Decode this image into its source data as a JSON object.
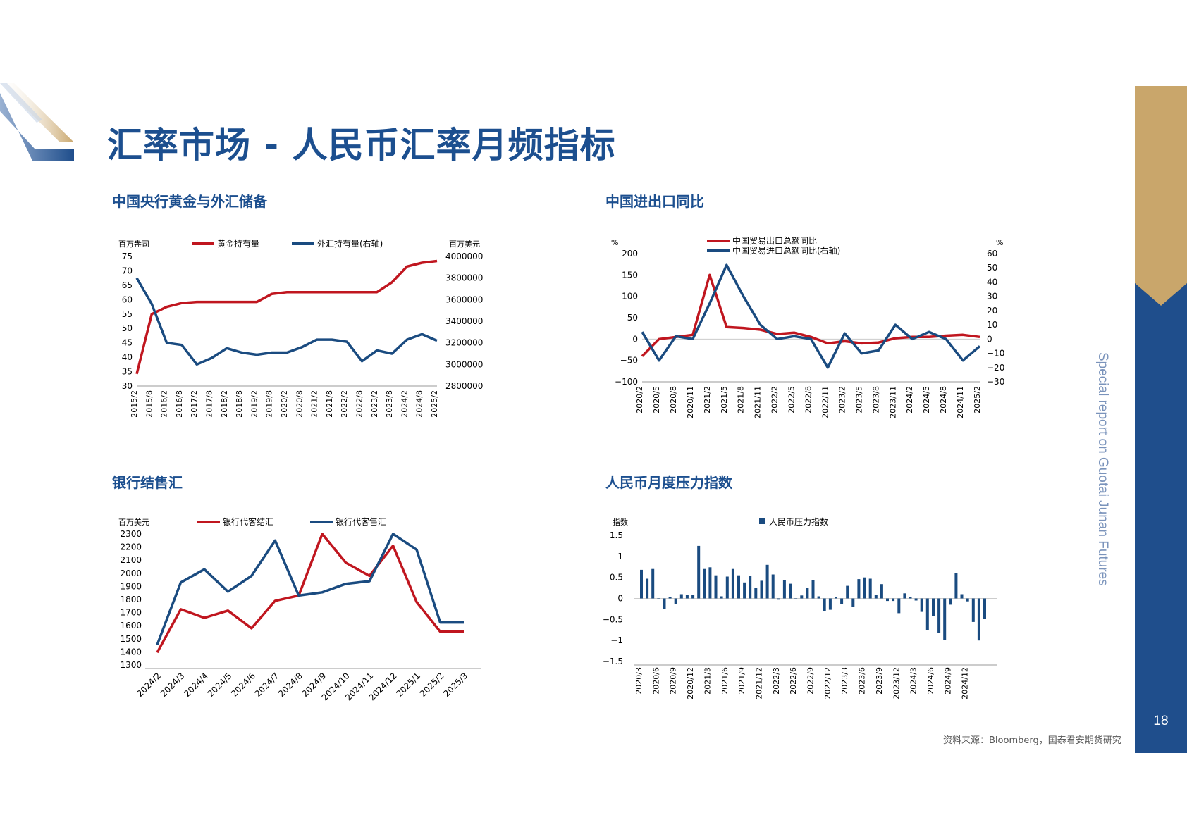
{
  "title": "汇率市场 - 人民币汇率月频指标",
  "side_text": "Special report on Guotai Junan Futures",
  "page_number": "18",
  "source": "资料来源：Bloomberg，国泰君安期货研究",
  "colors": {
    "red": "#c0161f",
    "navy": "#1a4b80",
    "gold": "#c9a66b",
    "side_blue": "#1f4e8c"
  },
  "chart_data": [
    {
      "type": "line",
      "title": "中国央行黄金与外汇储备",
      "left_unit": "百万盎司",
      "right_unit": "百万美元",
      "x": [
        "2015/2",
        "2015/8",
        "2016/2",
        "2016/8",
        "2017/2",
        "2017/8",
        "2018/2",
        "2018/8",
        "2019/2",
        "2019/8",
        "2020/2",
        "2020/8",
        "2021/2",
        "2021/8",
        "2022/2",
        "2022/8",
        "2023/2",
        "2023/8",
        "2024/2",
        "2024/8",
        "2025/2"
      ],
      "ylim": [
        30,
        75
      ],
      "y_ticks": [
        "75",
        "70",
        "65",
        "60",
        "55",
        "50",
        "45",
        "40",
        "35",
        "30"
      ],
      "y2lim": [
        2800000,
        4000000
      ],
      "y2_ticks": [
        "4000000",
        "3800000",
        "3600000",
        "3400000",
        "3200000",
        "3000000",
        "2800000"
      ],
      "series": [
        {
          "name": "黄金持有量",
          "axis": "left",
          "color": "#c0161f",
          "values": [
            34.2,
            55.0,
            57.5,
            58.8,
            59.2,
            59.2,
            59.2,
            59.2,
            59.2,
            62.0,
            62.6,
            62.6,
            62.6,
            62.6,
            62.6,
            62.6,
            62.6,
            66.0,
            71.5,
            72.8,
            73.4
          ]
        },
        {
          "name": "外汇持有量(右轴)",
          "axis": "right",
          "color": "#1a4b80",
          "values": [
            3800000,
            3560000,
            3200000,
            3180000,
            3000000,
            3060000,
            3150000,
            3110000,
            3090000,
            3110000,
            3110000,
            3160000,
            3230000,
            3230000,
            3210000,
            3030000,
            3130000,
            3100000,
            3230000,
            3280000,
            3220000
          ]
        }
      ]
    },
    {
      "type": "line",
      "title": "中国进出口同比",
      "left_unit": "%",
      "right_unit": "%",
      "x": [
        "2020/2",
        "2020/5",
        "2020/8",
        "2020/11",
        "2021/2",
        "2021/5",
        "2021/8",
        "2021/11",
        "2022/2",
        "2022/5",
        "2022/8",
        "2022/11",
        "2023/2",
        "2023/5",
        "2023/8",
        "2023/11",
        "2024/2",
        "2024/5",
        "2024/8",
        "2024/11",
        "2025/2"
      ],
      "ylim": [
        -100,
        200
      ],
      "y_ticks": [
        "200",
        "150",
        "100",
        "50",
        "0",
        "−50",
        "−100"
      ],
      "y2lim": [
        -30,
        60
      ],
      "y2_ticks": [
        "60",
        "50",
        "40",
        "30",
        "20",
        "10",
        "0",
        "−10",
        "−20",
        "−30"
      ],
      "series": [
        {
          "name": "中国贸易出口总额同比",
          "axis": "left",
          "color": "#c0161f",
          "values": [
            -40,
            0,
            5,
            10,
            150,
            28,
            26,
            22,
            12,
            15,
            5,
            -10,
            -5,
            -10,
            -8,
            2,
            5,
            5,
            8,
            10,
            5
          ]
        },
        {
          "name": "中国贸易进口总额同比(右轴)",
          "axis": "right",
          "color": "#1a4b80",
          "values": [
            5,
            -15,
            2,
            0,
            25,
            52,
            30,
            10,
            0,
            2,
            0,
            -20,
            4,
            -10,
            -8,
            10,
            0,
            5,
            0,
            -15,
            -5
          ]
        }
      ]
    },
    {
      "type": "line",
      "title": "银行结售汇",
      "left_unit": "百万美元",
      "categories": [
        "2024/2",
        "2024/3",
        "2024/4",
        "2024/5",
        "2024/6",
        "2024/7",
        "2024/8",
        "2024/9",
        "2024/10",
        "2024/11",
        "2024/12",
        "2025/1",
        "2025/2",
        "2025/3"
      ],
      "ylim": [
        1300,
        2300
      ],
      "y_ticks": [
        "2300",
        "2200",
        "2100",
        "2000",
        "1900",
        "1800",
        "1700",
        "1600",
        "1500",
        "1400",
        "1300"
      ],
      "series": [
        {
          "name": "银行代客结汇",
          "color": "#c0161f",
          "values": [
            1395,
            1725,
            1660,
            1715,
            1580,
            1790,
            1830,
            2300,
            2080,
            1980,
            2210,
            1780,
            1555,
            1555
          ]
        },
        {
          "name": "银行代客售汇",
          "color": "#1a4b80",
          "values": [
            1455,
            1930,
            2030,
            1860,
            1980,
            2250,
            1830,
            1855,
            1920,
            1940,
            2300,
            2180,
            1625,
            1625
          ]
        }
      ]
    },
    {
      "type": "bar",
      "title": "人民币月度压力指数",
      "left_unit": "指数",
      "x_labels": [
        "2020/3",
        "2020/6",
        "2020/9",
        "2020/12",
        "2021/3",
        "2021/6",
        "2021/9",
        "2021/12",
        "2022/3",
        "2022/6",
        "2022/9",
        "2022/12",
        "2023/3",
        "2023/6",
        "2023/9",
        "2023/12",
        "2024/3",
        "2024/6",
        "2024/9",
        "2024/12"
      ],
      "ylim": [
        -1.5,
        1.5
      ],
      "y_ticks": [
        "1.5",
        "1",
        "0.5",
        "0",
        "−0.5",
        "−1",
        "−1.5"
      ],
      "series": [
        {
          "name": "人民币压力指数",
          "color": "#1a4b80",
          "values": [
            0.68,
            0.47,
            0.7,
            -0.02,
            -0.26,
            0.03,
            -0.13,
            0.1,
            0.08,
            0.08,
            1.25,
            0.7,
            0.74,
            0.55,
            0.05,
            0.52,
            0.7,
            0.55,
            0.38,
            0.53,
            0.26,
            0.42,
            0.8,
            0.57,
            -0.03,
            0.43,
            0.35,
            -0.02,
            0.07,
            0.25,
            0.43,
            0.05,
            -0.3,
            -0.27,
            0.03,
            -0.13,
            0.3,
            -0.2,
            0.46,
            0.5,
            0.47,
            0.08,
            0.34,
            -0.06,
            -0.06,
            -0.35,
            0.12,
            0.03,
            -0.05,
            -0.32,
            -0.75,
            -0.42,
            -0.83,
            -0.99,
            -0.15,
            0.6,
            0.1,
            -0.07,
            -0.56,
            -1.0,
            -0.49
          ]
        }
      ]
    }
  ]
}
